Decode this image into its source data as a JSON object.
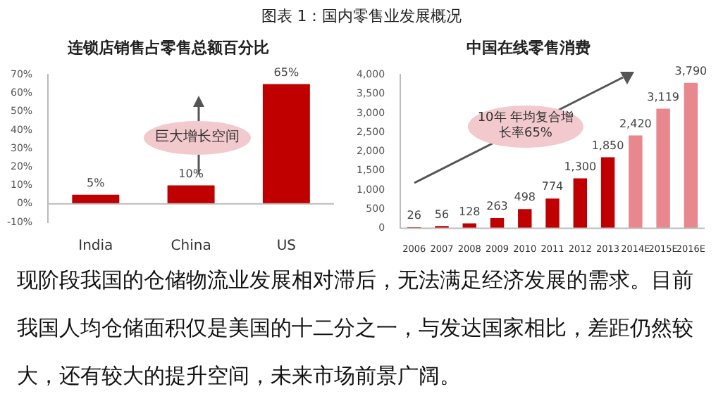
{
  "chart_data": [
    {
      "type": "bar",
      "title": "连锁店销售占零售总额百分比",
      "categories": [
        "India",
        "China",
        "US"
      ],
      "values": [
        5,
        10,
        65
      ],
      "color": "#c00000",
      "value_labels": [
        "5%",
        "10%",
        "65%"
      ],
      "ylim": [
        -10,
        70
      ],
      "yticks": [
        {
          "value": -10,
          "label": "-10%"
        },
        {
          "value": 0,
          "label": "0%"
        },
        {
          "value": 10,
          "label": "10%"
        },
        {
          "value": 20,
          "label": "20%"
        },
        {
          "value": 30,
          "label": "30%"
        },
        {
          "value": 40,
          "label": "40%"
        },
        {
          "value": 50,
          "label": "50%"
        },
        {
          "value": 60,
          "label": "60%"
        },
        {
          "value": 70,
          "label": "70%"
        }
      ],
      "annotations": [
        "图表 1：国内零售业发展概况",
        "巨大增长空间",
        "现阶段我国的仓储物流业发展相对滞后，无法满足经济发展的需求。目前我国人均仓储面积仅是美国的十二分之一，与发达国家相比，差距仍然较大，还有较大的提升空间，未来市场前景广阔。"
      ]
    },
    {
      "type": "bar",
      "title": "中国在线零售消费",
      "categories": [
        "2006",
        "2007",
        "2008",
        "2009",
        "2010",
        "2011",
        "2012",
        "2013",
        "2014E",
        "2015E",
        "2016E"
      ],
      "values": [
        26,
        56,
        128,
        263,
        498,
        774,
        1300,
        1850,
        2420,
        3119,
        3790
      ],
      "colors": [
        "#c00000",
        "#c00000",
        "#c00000",
        "#c00000",
        "#c00000",
        "#c00000",
        "#c00000",
        "#c00000",
        "#e8878d",
        "#e8878d",
        "#e8878d"
      ],
      "value_labels": [
        "26",
        "56",
        "128",
        "263",
        "498",
        "774",
        "1,300",
        "1,850",
        "2,420",
        "3,119",
        "3,790"
      ],
      "ylim": [
        0,
        4000
      ],
      "yticks": [
        {
          "value": 0,
          "label": "0"
        },
        {
          "value": 500,
          "label": "500"
        },
        {
          "value": 1000,
          "label": "1,000"
        },
        {
          "value": 1500,
          "label": "1,500"
        },
        {
          "value": 2000,
          "label": "2,000"
        },
        {
          "value": 2500,
          "label": "2,500"
        },
        {
          "value": 3000,
          "label": "3,000"
        },
        {
          "value": 3500,
          "label": "3,500"
        },
        {
          "value": 4000,
          "label": "4,000"
        }
      ],
      "annotations": [
        "10年 年均复合增长率65%"
      ]
    }
  ]
}
